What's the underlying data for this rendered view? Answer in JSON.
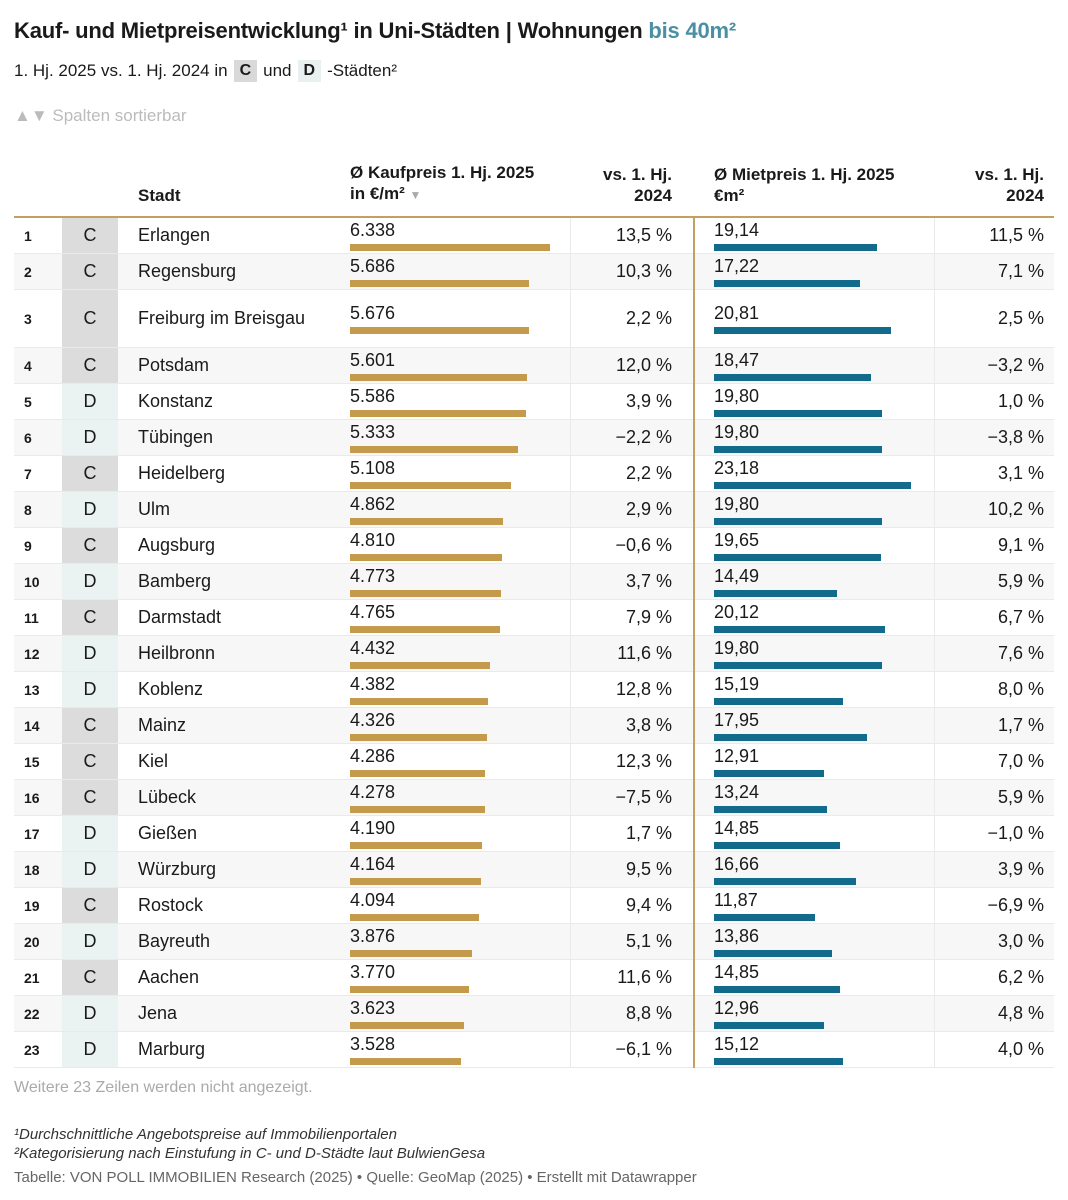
{
  "header": {
    "title_main": "Kauf- und Mietpreisentwicklung¹ in Uni-Städten | Wohnungen ",
    "title_accent": "bis 40m²",
    "subtitle_prefix": "1. Hj. 2025 vs. 1. Hj. 2024 in",
    "chip_c": "C",
    "subtitle_mid": "und",
    "chip_d": "D",
    "subtitle_suffix": "-Städten²",
    "sort_hint": "▲▼ Spalten sortierbar"
  },
  "columns": {
    "city": "Stadt",
    "kauf_line1": "Ø Kaufpreis 1. Hj. 2025",
    "kauf_line2": "in €/m²",
    "kauf_sort": "▼",
    "kchg_line1": "vs. 1. Hj.",
    "kchg_line2": "2024",
    "miet_line1": "Ø Mietpreis 1. Hj. 2025",
    "miet_line2": "€m²",
    "mchg_line1": "vs. 1. Hj.",
    "mchg_line2": "2024"
  },
  "chart_data": {
    "type": "table",
    "bar_scale": {
      "kauf_max": 6338,
      "miet_max": 23.18
    },
    "rows": [
      {
        "rank": "1",
        "cat": "C",
        "city": "Erlangen",
        "kauf": "6.338",
        "kauf_value": 6338,
        "kchg": "13,5 %",
        "miet": "19,14",
        "miet_value": 19.14,
        "mchg": "11,5 %"
      },
      {
        "rank": "2",
        "cat": "C",
        "city": "Regensburg",
        "kauf": "5.686",
        "kauf_value": 5686,
        "kchg": "10,3 %",
        "miet": "17,22",
        "miet_value": 17.22,
        "mchg": "7,1 %"
      },
      {
        "rank": "3",
        "cat": "C",
        "city": "Freiburg im Breisgau",
        "kauf": "5.676",
        "kauf_value": 5676,
        "kchg": "2,2 %",
        "miet": "20,81",
        "miet_value": 20.81,
        "mchg": "2,5 %"
      },
      {
        "rank": "4",
        "cat": "C",
        "city": "Potsdam",
        "kauf": "5.601",
        "kauf_value": 5601,
        "kchg": "12,0 %",
        "miet": "18,47",
        "miet_value": 18.47,
        "mchg": "−3,2 %"
      },
      {
        "rank": "5",
        "cat": "D",
        "city": "Konstanz",
        "kauf": "5.586",
        "kauf_value": 5586,
        "kchg": "3,9 %",
        "miet": "19,80",
        "miet_value": 19.8,
        "mchg": "1,0 %"
      },
      {
        "rank": "6",
        "cat": "D",
        "city": "Tübingen",
        "kauf": "5.333",
        "kauf_value": 5333,
        "kchg": "−2,2 %",
        "miet": "19,80",
        "miet_value": 19.8,
        "mchg": "−3,8 %"
      },
      {
        "rank": "7",
        "cat": "C",
        "city": "Heidelberg",
        "kauf": "5.108",
        "kauf_value": 5108,
        "kchg": "2,2 %",
        "miet": "23,18",
        "miet_value": 23.18,
        "mchg": "3,1 %"
      },
      {
        "rank": "8",
        "cat": "D",
        "city": "Ulm",
        "kauf": "4.862",
        "kauf_value": 4862,
        "kchg": "2,9 %",
        "miet": "19,80",
        "miet_value": 19.8,
        "mchg": "10,2 %"
      },
      {
        "rank": "9",
        "cat": "C",
        "city": "Augsburg",
        "kauf": "4.810",
        "kauf_value": 4810,
        "kchg": "−0,6 %",
        "miet": "19,65",
        "miet_value": 19.65,
        "mchg": "9,1 %"
      },
      {
        "rank": "10",
        "cat": "D",
        "city": "Bamberg",
        "kauf": "4.773",
        "kauf_value": 4773,
        "kchg": "3,7 %",
        "miet": "14,49",
        "miet_value": 14.49,
        "mchg": "5,9 %"
      },
      {
        "rank": "11",
        "cat": "C",
        "city": "Darmstadt",
        "kauf": "4.765",
        "kauf_value": 4765,
        "kchg": "7,9 %",
        "miet": "20,12",
        "miet_value": 20.12,
        "mchg": "6,7 %"
      },
      {
        "rank": "12",
        "cat": "D",
        "city": "Heilbronn",
        "kauf": "4.432",
        "kauf_value": 4432,
        "kchg": "11,6 %",
        "miet": "19,80",
        "miet_value": 19.8,
        "mchg": "7,6 %"
      },
      {
        "rank": "13",
        "cat": "D",
        "city": "Koblenz",
        "kauf": "4.382",
        "kauf_value": 4382,
        "kchg": "12,8 %",
        "miet": "15,19",
        "miet_value": 15.19,
        "mchg": "8,0 %"
      },
      {
        "rank": "14",
        "cat": "C",
        "city": "Mainz",
        "kauf": "4.326",
        "kauf_value": 4326,
        "kchg": "3,8 %",
        "miet": "17,95",
        "miet_value": 17.95,
        "mchg": "1,7 %"
      },
      {
        "rank": "15",
        "cat": "C",
        "city": "Kiel",
        "kauf": "4.286",
        "kauf_value": 4286,
        "kchg": "12,3 %",
        "miet": "12,91",
        "miet_value": 12.91,
        "mchg": "7,0 %"
      },
      {
        "rank": "16",
        "cat": "C",
        "city": "Lübeck",
        "kauf": "4.278",
        "kauf_value": 4278,
        "kchg": "−7,5 %",
        "miet": "13,24",
        "miet_value": 13.24,
        "mchg": "5,9 %"
      },
      {
        "rank": "17",
        "cat": "D",
        "city": "Gießen",
        "kauf": "4.190",
        "kauf_value": 4190,
        "kchg": "1,7 %",
        "miet": "14,85",
        "miet_value": 14.85,
        "mchg": "−1,0 %"
      },
      {
        "rank": "18",
        "cat": "D",
        "city": "Würzburg",
        "kauf": "4.164",
        "kauf_value": 4164,
        "kchg": "9,5 %",
        "miet": "16,66",
        "miet_value": 16.66,
        "mchg": "3,9 %"
      },
      {
        "rank": "19",
        "cat": "C",
        "city": "Rostock",
        "kauf": "4.094",
        "kauf_value": 4094,
        "kchg": "9,4 %",
        "miet": "11,87",
        "miet_value": 11.87,
        "mchg": "−6,9 %"
      },
      {
        "rank": "20",
        "cat": "D",
        "city": "Bayreuth",
        "kauf": "3.876",
        "kauf_value": 3876,
        "kchg": "5,1 %",
        "miet": "13,86",
        "miet_value": 13.86,
        "mchg": "3,0 %"
      },
      {
        "rank": "21",
        "cat": "C",
        "city": "Aachen",
        "kauf": "3.770",
        "kauf_value": 3770,
        "kchg": "11,6 %",
        "miet": "14,85",
        "miet_value": 14.85,
        "mchg": "6,2 %"
      },
      {
        "rank": "22",
        "cat": "D",
        "city": "Jena",
        "kauf": "3.623",
        "kauf_value": 3623,
        "kchg": "8,8 %",
        "miet": "12,96",
        "miet_value": 12.96,
        "mchg": "4,8 %"
      },
      {
        "rank": "23",
        "cat": "D",
        "city": "Marburg",
        "kauf": "3.528",
        "kauf_value": 3528,
        "kchg": "−6,1 %",
        "miet": "15,12",
        "miet_value": 15.12,
        "mchg": "4,0 %"
      }
    ]
  },
  "footer": {
    "more_rows": "Weitere 23 Zeilen werden nicht angezeigt.",
    "footnote1": "¹Durchschnittliche Angebotspreise auf Immobilienportalen",
    "footnote2": "²Kategorisierung nach Einstufung in C- und D-Städte laut BulwienGesa",
    "source": "Tabelle: VON POLL IMMOBILIEN Research (2025) • Quelle: GeoMap (2025) • Erstellt mit Datawrapper"
  },
  "colors": {
    "accent_title": "#4a90a4",
    "bar_kauf": "#c49a4c",
    "bar_miet": "#136b8c",
    "cat_c_bg": "#dcdcdc",
    "cat_d_bg": "#eaf2f2"
  }
}
